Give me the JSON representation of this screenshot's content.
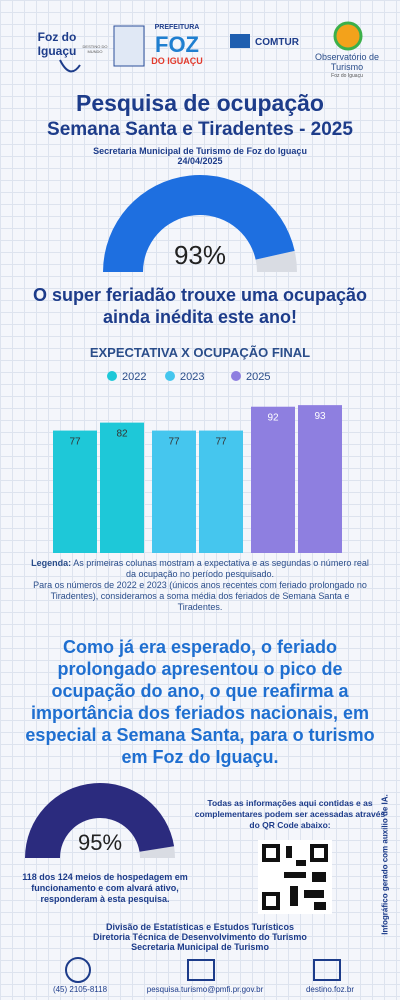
{
  "header": {
    "logo_left": "Foz do Iguaçu",
    "logo_left_sub": "DESTINO DO MUNDO",
    "logo_pref": "PREFEITURA",
    "logo_foz": "FOZ",
    "logo_do": "DO IGUAÇU",
    "logo_comtur": "COMTUR",
    "logo_obs": "Observatório de Turismo",
    "logo_obs_sub": "Foz do Iguaçu"
  },
  "title": "Pesquisa de ocupação",
  "subtitle": "Semana Santa e Tiradentes - 2025",
  "source": "Secretaria Municipal de Turismo de Foz do Iguaçu",
  "date": "24/04/2025",
  "gauges": [
    {
      "value": 93,
      "value_label": "93%",
      "color": "#1e6fe0"
    },
    {
      "value": 95,
      "value_label": "95%",
      "color": "#2b2b7e"
    }
  ],
  "headline": "O super feriadão trouxe uma ocupação ainda inédita este ano!",
  "chart_data": {
    "type": "bar",
    "title": "EXPECTATIVA X OCUPAÇÃO FINAL",
    "categories": [
      null,
      null
    ],
    "ylim": [
      0,
      100
    ],
    "series": [
      {
        "name": "2022",
        "color": "#1ec8d8",
        "values": [
          77,
          82
        ]
      },
      {
        "name": "2023",
        "color": "#45c6ee",
        "values": [
          77,
          77
        ]
      },
      {
        "name": "2025",
        "color": "#8e7fe0",
        "values": [
          92,
          93
        ]
      }
    ]
  },
  "legend_note": {
    "label": "Legenda:",
    "text": "As primeiras colunas mostram a expectativa e as segundas o número real da ocupação no período pesquisado.",
    "text2": "Para os números de 2022 e 2023 (únicos anos recentes com feriado prolongado no Tiradentes), consideramos a soma média dos feriados de Semana Santa e Tiradentes."
  },
  "paragraph": "Como já era esperado, o feriado prolongado apresentou o pico de ocupação do ano, o que reafirma a importância dos feriados nacionais, em especial a Semana Santa, para o turismo em Foz do Iguaçu.",
  "survey_note": "118 dos 124 meios de hospedagem em funcionamento e com alvará ativo, responderam à esta pesquisa.",
  "qr_note": "Todas as informações aqui contidas e as complementares podem ser acessadas através do QR Code abaixo:",
  "footer": [
    "Divisão de Estatísticas e Estudos Turísticos",
    "Diretoria Técnica de Desenvolvimento do Turismo",
    "Secretaria Municipal de Turismo"
  ],
  "contacts": {
    "phone": "(45) 2105-8118",
    "email": "pesquisa.turismo@pmfi.pr.gov.br",
    "site": "destino.foz.br"
  },
  "ai_note": "Infográfico gerado com auxílio de IA."
}
